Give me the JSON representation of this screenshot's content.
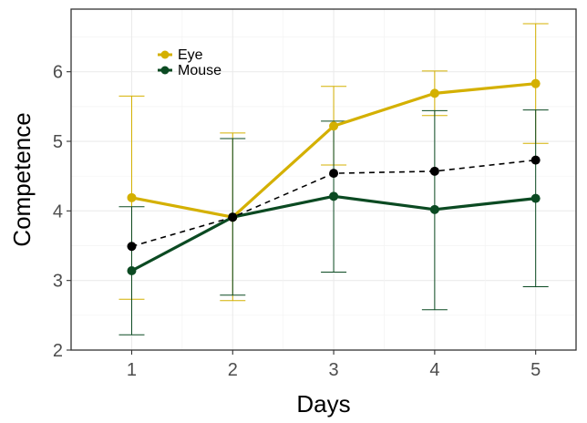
{
  "chart_data": {
    "type": "line",
    "title": "",
    "xlabel": "Days",
    "ylabel": "Competence",
    "x": [
      1,
      2,
      3,
      4,
      5
    ],
    "xlim": [
      0.4,
      5.4
    ],
    "ylim": [
      2,
      6.9
    ],
    "x_ticks": [
      "1",
      "2",
      "3",
      "4",
      "5"
    ],
    "y_ticks": [
      "2",
      "3",
      "4",
      "5",
      "6"
    ],
    "grid": true,
    "legend_position": "top-left",
    "series": [
      {
        "name": "Eye",
        "color": "#d4b000",
        "style": "solid",
        "values": [
          4.19,
          3.91,
          5.22,
          5.69,
          5.83
        ],
        "error_low": [
          2.73,
          2.71,
          4.66,
          5.37,
          4.97
        ],
        "error_high": [
          5.65,
          5.12,
          5.79,
          6.01,
          6.69
        ]
      },
      {
        "name": "Mouse",
        "color": "#0b4a22",
        "style": "solid",
        "values": [
          3.14,
          3.91,
          4.21,
          4.02,
          4.18
        ],
        "error_low": [
          2.22,
          2.79,
          3.12,
          2.58,
          2.91
        ],
        "error_high": [
          4.06,
          5.04,
          5.29,
          5.44,
          5.45
        ]
      },
      {
        "color": "#000000",
        "style": "dashed",
        "values": [
          3.49,
          3.91,
          4.54,
          4.57,
          4.73
        ]
      }
    ]
  }
}
